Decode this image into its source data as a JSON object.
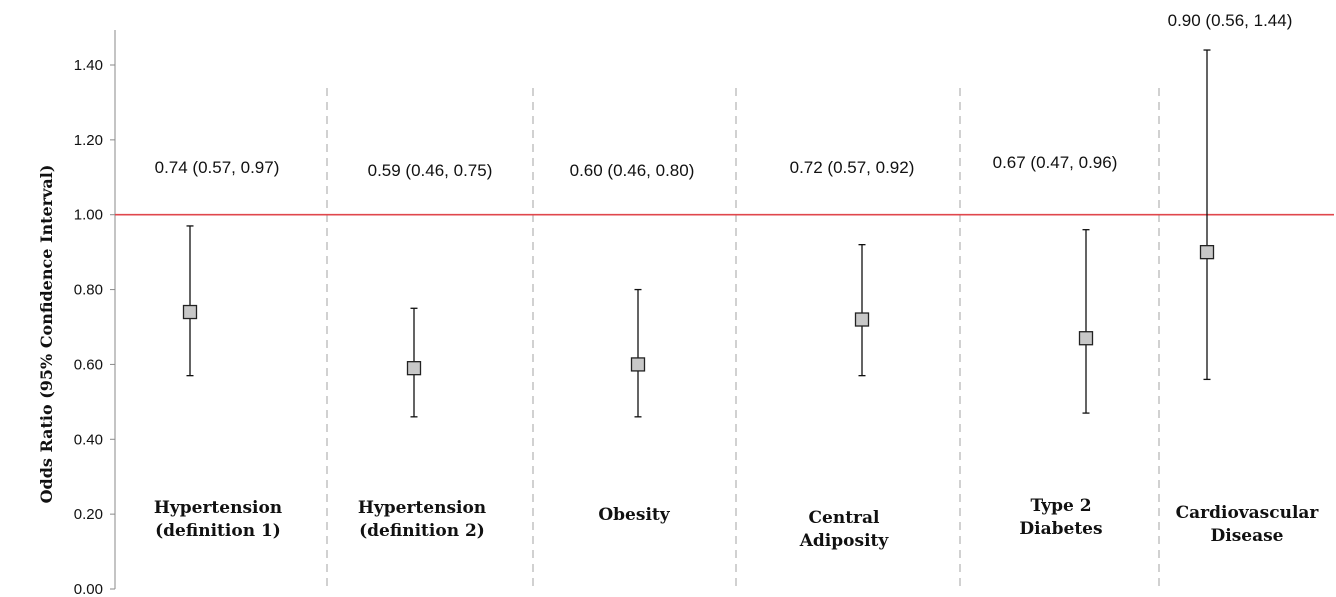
{
  "chart_data": {
    "type": "scatter",
    "title": "",
    "ylabel": "Odds Ratio (95% Confidence Interval)",
    "ylim": [
      0,
      1.4
    ],
    "yticks": [
      "0.00",
      "0.20",
      "0.40",
      "0.60",
      "0.80",
      "1.00",
      "1.20",
      "1.40"
    ],
    "reference_line": {
      "value": 1.0,
      "color": "#e0474c"
    },
    "marker_color": "#c8c8c8",
    "grid": false,
    "categories": [
      {
        "label_lines": [
          "Hypertension",
          "(definition 1)"
        ],
        "or": 0.74,
        "lower": 0.57,
        "upper": 0.97,
        "annotation": "0.74 (0.57, 0.97)"
      },
      {
        "label_lines": [
          "Hypertension",
          "(definition 2)"
        ],
        "or": 0.59,
        "lower": 0.46,
        "upper": 0.75,
        "annotation": "0.59 (0.46, 0.75)"
      },
      {
        "label_lines": [
          "Obesity"
        ],
        "or": 0.6,
        "lower": 0.46,
        "upper": 0.8,
        "annotation": "0.60 (0.46, 0.80)"
      },
      {
        "label_lines": [
          "Central",
          "Adiposity"
        ],
        "or": 0.72,
        "lower": 0.57,
        "upper": 0.92,
        "annotation": "0.72 (0.57, 0.92)"
      },
      {
        "label_lines": [
          "Type 2",
          "Diabetes"
        ],
        "or": 0.67,
        "lower": 0.47,
        "upper": 0.96,
        "annotation": "0.67 (0.47, 0.96)"
      },
      {
        "label_lines": [
          "Cardiovascular",
          "Disease"
        ],
        "or": 0.9,
        "lower": 0.56,
        "upper": 1.44,
        "annotation": "0.90 (0.56, 1.44)"
      }
    ]
  }
}
